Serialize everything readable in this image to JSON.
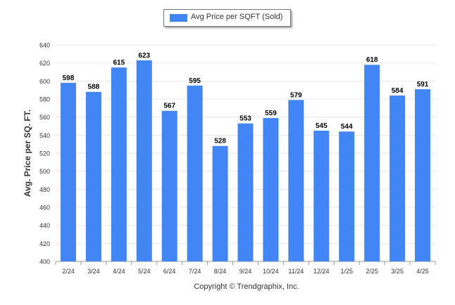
{
  "legend": {
    "label": "Avg Price per SQFT (Sold)"
  },
  "credit": "Copyright © Trendgraphix, Inc.",
  "colors": {
    "bar": "#4285F4",
    "grid": "#e6e6e6",
    "axis": "#999999",
    "text": "#333333"
  },
  "chart_data": {
    "type": "bar",
    "ylabel": "Avg. Price per SQ. FT.",
    "xlabel": "",
    "ylim": [
      400,
      640
    ],
    "ytick_step": 20,
    "grid": true,
    "legend_position": "top-center",
    "categories": [
      "2/24",
      "3/24",
      "4/24",
      "5/24",
      "6/24",
      "7/24",
      "8/24",
      "9/24",
      "10/24",
      "11/24",
      "12/24",
      "1/25",
      "2/25",
      "3/25",
      "4/25"
    ],
    "series": [
      {
        "name": "Avg Price per SQFT (Sold)",
        "values": [
          598,
          588,
          615,
          623,
          567,
          595,
          528,
          553,
          559,
          579,
          545,
          544,
          618,
          584,
          591
        ]
      }
    ]
  }
}
